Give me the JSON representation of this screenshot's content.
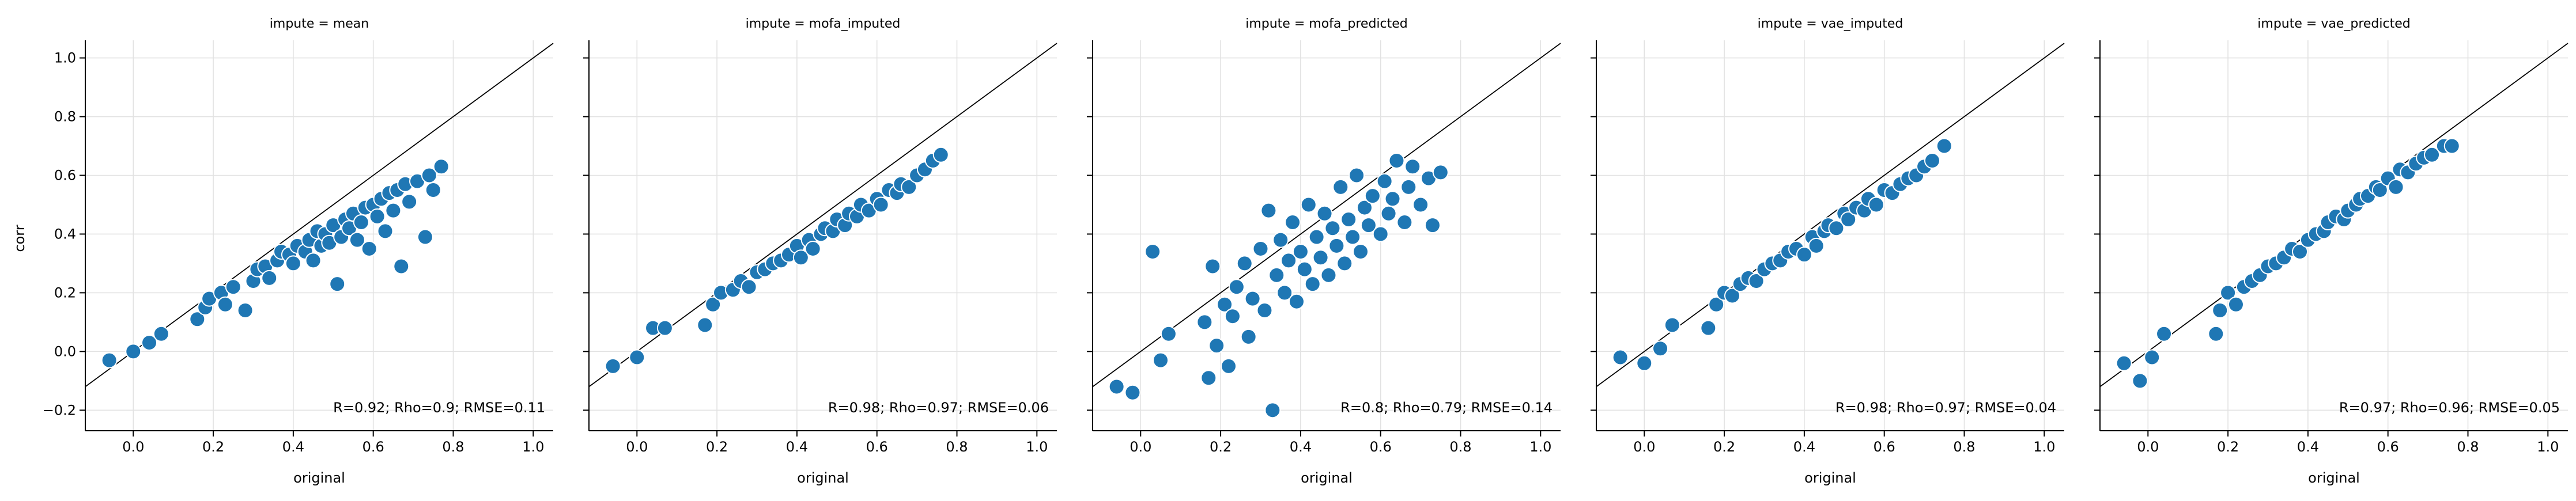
{
  "figure": {
    "ylabel": "corr",
    "xlabel": "original"
  },
  "colors": {
    "points": "#1f77b4",
    "identity_line": "#000000",
    "grid": "#e2e2e2",
    "point_edge": "#ffffff"
  },
  "chart_data": [
    {
      "type": "scatter",
      "title": "impute = mean",
      "xlabel": "original",
      "ylabel": "corr",
      "xlim": [
        -0.12,
        1.05
      ],
      "ylim": [
        -0.27,
        1.06
      ],
      "xticks": [
        "0.0",
        "0.2",
        "0.4",
        "0.6",
        "0.8",
        "1.0"
      ],
      "yticks": [
        "−0.2",
        "0.0",
        "0.2",
        "0.4",
        "0.6",
        "0.8",
        "1.0"
      ],
      "grid": true,
      "reference_line": "y = x",
      "annotation": "R=0.92; Rho=0.9; RMSE=0.11",
      "annotation_position": "bottom-right",
      "points": [
        [
          -0.06,
          -0.03
        ],
        [
          0.0,
          0.0
        ],
        [
          0.04,
          0.03
        ],
        [
          0.07,
          0.06
        ],
        [
          0.16,
          0.11
        ],
        [
          0.18,
          0.15
        ],
        [
          0.19,
          0.18
        ],
        [
          0.22,
          0.2
        ],
        [
          0.23,
          0.16
        ],
        [
          0.25,
          0.22
        ],
        [
          0.28,
          0.14
        ],
        [
          0.3,
          0.24
        ],
        [
          0.31,
          0.28
        ],
        [
          0.33,
          0.29
        ],
        [
          0.34,
          0.25
        ],
        [
          0.36,
          0.31
        ],
        [
          0.37,
          0.34
        ],
        [
          0.39,
          0.33
        ],
        [
          0.4,
          0.3
        ],
        [
          0.41,
          0.36
        ],
        [
          0.43,
          0.34
        ],
        [
          0.44,
          0.38
        ],
        [
          0.45,
          0.31
        ],
        [
          0.46,
          0.41
        ],
        [
          0.47,
          0.36
        ],
        [
          0.48,
          0.4
        ],
        [
          0.49,
          0.37
        ],
        [
          0.5,
          0.43
        ],
        [
          0.51,
          0.23
        ],
        [
          0.52,
          0.39
        ],
        [
          0.53,
          0.45
        ],
        [
          0.54,
          0.42
        ],
        [
          0.55,
          0.47
        ],
        [
          0.56,
          0.38
        ],
        [
          0.57,
          0.44
        ],
        [
          0.58,
          0.49
        ],
        [
          0.59,
          0.35
        ],
        [
          0.6,
          0.5
        ],
        [
          0.61,
          0.46
        ],
        [
          0.62,
          0.52
        ],
        [
          0.63,
          0.41
        ],
        [
          0.64,
          0.54
        ],
        [
          0.65,
          0.48
        ],
        [
          0.66,
          0.55
        ],
        [
          0.67,
          0.29
        ],
        [
          0.68,
          0.57
        ],
        [
          0.69,
          0.51
        ],
        [
          0.71,
          0.58
        ],
        [
          0.73,
          0.39
        ],
        [
          0.74,
          0.6
        ],
        [
          0.75,
          0.55
        ],
        [
          0.77,
          0.63
        ]
      ]
    },
    {
      "type": "scatter",
      "title": "impute = mofa_imputed",
      "xlabel": "original",
      "xlim": [
        -0.12,
        1.05
      ],
      "ylim": [
        -0.27,
        1.06
      ],
      "xticks": [
        "0.0",
        "0.2",
        "0.4",
        "0.6",
        "0.8",
        "1.0"
      ],
      "grid": true,
      "reference_line": "y = x",
      "annotation": "R=0.98; Rho=0.97; RMSE=0.06",
      "annotation_position": "bottom-right",
      "points": [
        [
          -0.06,
          -0.05
        ],
        [
          0.0,
          -0.02
        ],
        [
          0.04,
          0.08
        ],
        [
          0.07,
          0.08
        ],
        [
          0.17,
          0.09
        ],
        [
          0.19,
          0.16
        ],
        [
          0.21,
          0.2
        ],
        [
          0.24,
          0.21
        ],
        [
          0.26,
          0.24
        ],
        [
          0.28,
          0.22
        ],
        [
          0.3,
          0.27
        ],
        [
          0.32,
          0.28
        ],
        [
          0.34,
          0.3
        ],
        [
          0.36,
          0.31
        ],
        [
          0.38,
          0.33
        ],
        [
          0.4,
          0.36
        ],
        [
          0.41,
          0.32
        ],
        [
          0.43,
          0.38
        ],
        [
          0.44,
          0.35
        ],
        [
          0.46,
          0.4
        ],
        [
          0.47,
          0.42
        ],
        [
          0.49,
          0.41
        ],
        [
          0.5,
          0.45
        ],
        [
          0.52,
          0.43
        ],
        [
          0.53,
          0.47
        ],
        [
          0.55,
          0.46
        ],
        [
          0.56,
          0.5
        ],
        [
          0.58,
          0.48
        ],
        [
          0.6,
          0.52
        ],
        [
          0.61,
          0.5
        ],
        [
          0.63,
          0.55
        ],
        [
          0.65,
          0.54
        ],
        [
          0.66,
          0.57
        ],
        [
          0.68,
          0.56
        ],
        [
          0.7,
          0.6
        ],
        [
          0.72,
          0.62
        ],
        [
          0.74,
          0.65
        ],
        [
          0.76,
          0.67
        ]
      ]
    },
    {
      "type": "scatter",
      "title": "impute = mofa_predicted",
      "xlabel": "original",
      "xlim": [
        -0.12,
        1.05
      ],
      "ylim": [
        -0.27,
        1.06
      ],
      "xticks": [
        "0.0",
        "0.2",
        "0.4",
        "0.6",
        "0.8",
        "1.0"
      ],
      "grid": true,
      "reference_line": "y = x",
      "annotation": "R=0.8; Rho=0.79; RMSE=0.14",
      "annotation_position": "bottom-right",
      "points": [
        [
          -0.06,
          -0.12
        ],
        [
          -0.02,
          -0.14
        ],
        [
          0.03,
          0.34
        ],
        [
          0.05,
          -0.03
        ],
        [
          0.07,
          0.06
        ],
        [
          0.16,
          0.1
        ],
        [
          0.17,
          -0.09
        ],
        [
          0.18,
          0.29
        ],
        [
          0.19,
          0.02
        ],
        [
          0.21,
          0.16
        ],
        [
          0.22,
          -0.05
        ],
        [
          0.23,
          0.12
        ],
        [
          0.24,
          0.22
        ],
        [
          0.26,
          0.3
        ],
        [
          0.27,
          0.05
        ],
        [
          0.28,
          0.18
        ],
        [
          0.3,
          0.35
        ],
        [
          0.31,
          0.14
        ],
        [
          0.32,
          0.48
        ],
        [
          0.33,
          -0.2
        ],
        [
          0.34,
          0.26
        ],
        [
          0.35,
          0.38
        ],
        [
          0.36,
          0.2
        ],
        [
          0.37,
          0.31
        ],
        [
          0.38,
          0.44
        ],
        [
          0.39,
          0.17
        ],
        [
          0.4,
          0.34
        ],
        [
          0.41,
          0.28
        ],
        [
          0.42,
          0.5
        ],
        [
          0.43,
          0.23
        ],
        [
          0.44,
          0.39
        ],
        [
          0.45,
          0.32
        ],
        [
          0.46,
          0.47
        ],
        [
          0.47,
          0.26
        ],
        [
          0.48,
          0.42
        ],
        [
          0.49,
          0.36
        ],
        [
          0.5,
          0.56
        ],
        [
          0.51,
          0.3
        ],
        [
          0.52,
          0.45
        ],
        [
          0.53,
          0.39
        ],
        [
          0.54,
          0.6
        ],
        [
          0.55,
          0.34
        ],
        [
          0.56,
          0.49
        ],
        [
          0.57,
          0.43
        ],
        [
          0.58,
          0.53
        ],
        [
          0.6,
          0.4
        ],
        [
          0.61,
          0.58
        ],
        [
          0.62,
          0.47
        ],
        [
          0.63,
          0.52
        ],
        [
          0.64,
          0.65
        ],
        [
          0.66,
          0.44
        ],
        [
          0.67,
          0.56
        ],
        [
          0.68,
          0.63
        ],
        [
          0.7,
          0.5
        ],
        [
          0.72,
          0.59
        ],
        [
          0.73,
          0.43
        ],
        [
          0.75,
          0.61
        ]
      ]
    },
    {
      "type": "scatter",
      "title": "impute = vae_imputed",
      "xlabel": "original",
      "xlim": [
        -0.12,
        1.05
      ],
      "ylim": [
        -0.27,
        1.06
      ],
      "xticks": [
        "0.0",
        "0.2",
        "0.4",
        "0.6",
        "0.8",
        "1.0"
      ],
      "grid": true,
      "reference_line": "y = x",
      "annotation": "R=0.98; Rho=0.97; RMSE=0.04",
      "annotation_position": "bottom-right",
      "points": [
        [
          -0.06,
          -0.02
        ],
        [
          0.0,
          -0.04
        ],
        [
          0.04,
          0.01
        ],
        [
          0.07,
          0.09
        ],
        [
          0.16,
          0.08
        ],
        [
          0.18,
          0.16
        ],
        [
          0.2,
          0.2
        ],
        [
          0.22,
          0.19
        ],
        [
          0.24,
          0.23
        ],
        [
          0.26,
          0.25
        ],
        [
          0.28,
          0.24
        ],
        [
          0.3,
          0.28
        ],
        [
          0.32,
          0.3
        ],
        [
          0.34,
          0.31
        ],
        [
          0.36,
          0.34
        ],
        [
          0.38,
          0.35
        ],
        [
          0.4,
          0.33
        ],
        [
          0.42,
          0.39
        ],
        [
          0.43,
          0.36
        ],
        [
          0.45,
          0.41
        ],
        [
          0.46,
          0.43
        ],
        [
          0.48,
          0.42
        ],
        [
          0.5,
          0.47
        ],
        [
          0.51,
          0.45
        ],
        [
          0.53,
          0.49
        ],
        [
          0.55,
          0.48
        ],
        [
          0.56,
          0.52
        ],
        [
          0.58,
          0.5
        ],
        [
          0.6,
          0.55
        ],
        [
          0.62,
          0.54
        ],
        [
          0.64,
          0.57
        ],
        [
          0.66,
          0.59
        ],
        [
          0.68,
          0.6
        ],
        [
          0.7,
          0.63
        ],
        [
          0.72,
          0.65
        ],
        [
          0.75,
          0.7
        ]
      ]
    },
    {
      "type": "scatter",
      "title": "impute = vae_predicted",
      "xlabel": "original",
      "xlim": [
        -0.12,
        1.05
      ],
      "ylim": [
        -0.27,
        1.06
      ],
      "xticks": [
        "0.0",
        "0.2",
        "0.4",
        "0.6",
        "0.8",
        "1.0"
      ],
      "grid": true,
      "reference_line": "y = x",
      "annotation": "R=0.97; Rho=0.96; RMSE=0.05",
      "annotation_position": "bottom-right",
      "points": [
        [
          -0.06,
          -0.04
        ],
        [
          -0.02,
          -0.1
        ],
        [
          0.01,
          -0.02
        ],
        [
          0.04,
          0.06
        ],
        [
          0.17,
          0.06
        ],
        [
          0.18,
          0.14
        ],
        [
          0.2,
          0.2
        ],
        [
          0.22,
          0.16
        ],
        [
          0.24,
          0.22
        ],
        [
          0.26,
          0.24
        ],
        [
          0.28,
          0.26
        ],
        [
          0.3,
          0.29
        ],
        [
          0.32,
          0.3
        ],
        [
          0.34,
          0.32
        ],
        [
          0.36,
          0.35
        ],
        [
          0.38,
          0.34
        ],
        [
          0.4,
          0.38
        ],
        [
          0.42,
          0.4
        ],
        [
          0.44,
          0.41
        ],
        [
          0.45,
          0.44
        ],
        [
          0.47,
          0.46
        ],
        [
          0.49,
          0.45
        ],
        [
          0.5,
          0.48
        ],
        [
          0.52,
          0.5
        ],
        [
          0.53,
          0.52
        ],
        [
          0.55,
          0.53
        ],
        [
          0.57,
          0.56
        ],
        [
          0.58,
          0.55
        ],
        [
          0.6,
          0.59
        ],
        [
          0.62,
          0.56
        ],
        [
          0.63,
          0.62
        ],
        [
          0.65,
          0.61
        ],
        [
          0.67,
          0.64
        ],
        [
          0.69,
          0.66
        ],
        [
          0.71,
          0.67
        ],
        [
          0.74,
          0.7
        ],
        [
          0.76,
          0.7
        ]
      ]
    }
  ]
}
